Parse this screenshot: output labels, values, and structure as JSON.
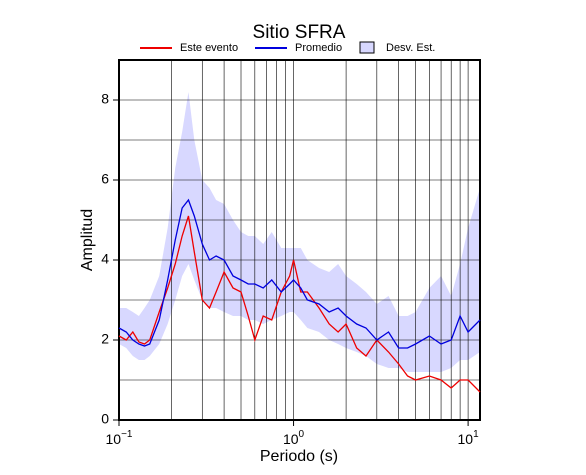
{
  "chart_data": {
    "type": "line",
    "title": "Sitio SFRA",
    "xlabel": "Periodo (s)",
    "ylabel": "Amplitud",
    "xscale": "log",
    "xlim": [
      0.1,
      11.7
    ],
    "ylim": [
      0,
      9
    ],
    "xticks": [
      {
        "value": 0.1,
        "label": "10",
        "exponent": "−1"
      },
      {
        "value": 1,
        "label": "10",
        "exponent": "0"
      },
      {
        "value": 10,
        "label": "10",
        "exponent": "1"
      }
    ],
    "xgrid": [
      0.2,
      0.3,
      0.4,
      0.5,
      0.6,
      0.7,
      0.8,
      0.9,
      2,
      3,
      4,
      5,
      6,
      7,
      8,
      9
    ],
    "yticks": [
      0,
      2,
      4,
      6,
      8
    ],
    "ygrid": [
      1,
      3,
      5,
      7
    ],
    "grid": true,
    "x": [
      0.1,
      0.11,
      0.12,
      0.13,
      0.14,
      0.15,
      0.17,
      0.19,
      0.21,
      0.23,
      0.25,
      0.27,
      0.3,
      0.33,
      0.36,
      0.4,
      0.45,
      0.5,
      0.55,
      0.6,
      0.67,
      0.75,
      0.85,
      0.95,
      1.0,
      1.1,
      1.2,
      1.4,
      1.6,
      1.8,
      2.0,
      2.3,
      2.6,
      3.0,
      3.5,
      4.0,
      4.5,
      5,
      6,
      7,
      8,
      9,
      10,
      11.7
    ],
    "series": [
      {
        "name": "Este evento",
        "color": "#ee0000",
        "values": [
          2.1,
          2.0,
          2.2,
          1.95,
          1.9,
          2.0,
          2.7,
          3.3,
          3.9,
          4.6,
          5.1,
          4.2,
          3.0,
          2.8,
          3.2,
          3.7,
          3.3,
          3.2,
          2.6,
          2.0,
          2.6,
          2.5,
          3.2,
          3.6,
          4.0,
          3.2,
          3.2,
          2.8,
          2.4,
          2.2,
          2.4,
          1.8,
          1.6,
          2.0,
          1.7,
          1.4,
          1.1,
          1.0,
          1.1,
          1.0,
          0.8,
          1.0,
          1.0,
          0.7
        ]
      },
      {
        "name": "Promedio",
        "color": "#0000dd",
        "values": [
          2.3,
          2.2,
          2.0,
          1.9,
          1.85,
          1.9,
          2.5,
          3.5,
          4.5,
          5.3,
          5.5,
          5.1,
          4.4,
          4.0,
          4.1,
          4.0,
          3.6,
          3.5,
          3.4,
          3.4,
          3.3,
          3.5,
          3.2,
          3.4,
          3.5,
          3.3,
          3.0,
          2.9,
          2.7,
          2.8,
          2.6,
          2.4,
          2.3,
          2.0,
          2.2,
          1.8,
          1.8,
          1.9,
          2.1,
          1.9,
          2.0,
          2.6,
          2.2,
          2.5
        ]
      },
      {
        "name": "Desv. Est.",
        "color": "#d8d8ff",
        "band": true,
        "lower": [
          1.9,
          1.8,
          1.6,
          1.5,
          1.5,
          1.6,
          1.9,
          2.4,
          3.0,
          3.6,
          3.9,
          3.5,
          3.0,
          2.8,
          2.8,
          2.7,
          2.6,
          2.6,
          2.5,
          2.5,
          2.4,
          2.5,
          2.6,
          2.7,
          2.7,
          2.5,
          2.3,
          2.2,
          2.0,
          1.9,
          1.8,
          1.7,
          1.6,
          1.4,
          1.3,
          1.3,
          1.2,
          1.2,
          1.2,
          1.2,
          1.3,
          1.5,
          1.5,
          1.7
        ],
        "upper": [
          2.8,
          2.8,
          2.7,
          2.6,
          2.8,
          3.0,
          3.6,
          4.8,
          6.3,
          7.2,
          8.2,
          7.0,
          6.0,
          5.8,
          5.5,
          5.4,
          5.0,
          4.7,
          4.6,
          4.6,
          4.4,
          4.7,
          4.3,
          4.3,
          4.3,
          4.3,
          4.0,
          3.8,
          3.7,
          3.9,
          3.6,
          3.4,
          3.2,
          2.9,
          3.1,
          2.6,
          2.6,
          2.7,
          3.3,
          3.6,
          3.1,
          3.9,
          4.8,
          5.8
        ]
      }
    ]
  }
}
